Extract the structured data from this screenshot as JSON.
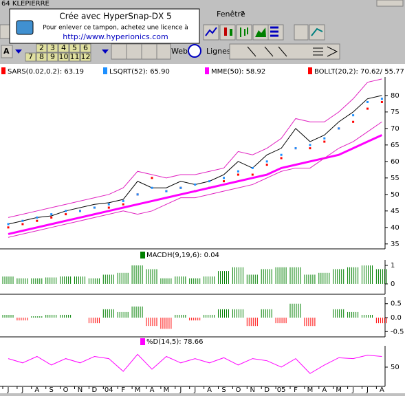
{
  "window": {
    "title": "64  KLEPIERRE"
  },
  "menu": {
    "items": [
      "Fenêtre",
      "?"
    ]
  },
  "stamp": {
    "line1": "Crée avec HyperSnap-DX 5",
    "line2": "Pour enlever ce tampon, achetez une licence à",
    "url": "http://www.hyperionics.com"
  },
  "toolbar": {
    "font_button": "A",
    "periods_top": [
      "2",
      "3",
      "4",
      "5",
      "6"
    ],
    "periods_bottom": [
      "7",
      "8",
      "9",
      "10",
      "11",
      "12"
    ],
    "web": "Web",
    "lines": "Lignes"
  },
  "chart_data": [
    {
      "type": "line",
      "categories": [
        "J",
        "J",
        "A",
        "S",
        "O",
        "N",
        "D",
        "04",
        "F",
        "M",
        "A",
        "M",
        "J",
        "J",
        "A",
        "S",
        "O",
        "N",
        "D",
        "05",
        "F",
        "M",
        "A",
        "M",
        "J",
        "J",
        "A"
      ],
      "ylim": [
        33.5,
        85.6
      ],
      "yticks": [
        35,
        40,
        45,
        50,
        55,
        60,
        65,
        70,
        75,
        80
      ],
      "series": [
        {
          "color": "#000000",
          "values": [
            41,
            42,
            43,
            43.5,
            45,
            46,
            47,
            47.5,
            48.5,
            54,
            52,
            52,
            54,
            53,
            54,
            56,
            60,
            58,
            62,
            64,
            70,
            66,
            68,
            72,
            75,
            79,
            80
          ]
        },
        {
          "name": "SARS(0.02,0.2): 63.19",
          "color": "#ff0000",
          "style": "dots",
          "values": [
            40,
            41,
            42,
            43,
            44,
            45,
            46,
            46,
            47,
            50,
            55,
            51,
            52,
            51,
            52,
            54,
            56,
            56,
            59,
            61,
            64,
            64,
            66,
            70,
            72,
            76,
            78
          ]
        },
        {
          "name": "LSQRT(52): 65.90",
          "color": "#1e90ff",
          "style": "dots",
          "values": [
            41,
            42,
            43,
            44,
            45,
            45,
            46,
            47,
            48,
            50,
            52,
            51,
            52,
            53,
            54,
            55,
            57,
            58,
            60,
            62,
            64,
            65,
            67,
            70,
            74,
            78,
            79
          ]
        },
        {
          "name": "MME(50): 58.92",
          "color": "#ff00ff",
          "style": "thick",
          "values": [
            38,
            39,
            40,
            41,
            42,
            43,
            44,
            45,
            46,
            47,
            48,
            49,
            50,
            51,
            52,
            53,
            54,
            55,
            56,
            58,
            59,
            60,
            61,
            62,
            64,
            66,
            68
          ]
        },
        {
          "name": "BOLLT(20,2): 70.62/ 55.77",
          "color": "#ff0000",
          "band_color": "#e020c0",
          "values": [
            43,
            44,
            45,
            46,
            47,
            48,
            49,
            50,
            52,
            57,
            56,
            55,
            56,
            56,
            57,
            58,
            63,
            62,
            64,
            67,
            73,
            72,
            72,
            75,
            79,
            84,
            85
          ],
          "lower": [
            37,
            38,
            39,
            40,
            41,
            42,
            43,
            44,
            45,
            44,
            45,
            47,
            49,
            49,
            50,
            51,
            52,
            53,
            55,
            57,
            58,
            58,
            61,
            64,
            66,
            69,
            72
          ]
        }
      ]
    },
    {
      "type": "bar",
      "title": "MACDH(9,19,6): 0.04",
      "title_color": "#008000",
      "ylim": [
        -0.56,
        1.3
      ],
      "yticks": [
        0,
        1
      ],
      "series": [
        {
          "color": "#008000",
          "values": [
            0.4,
            0.3,
            0.3,
            0.35,
            0.4,
            0.4,
            0.3,
            0.5,
            0.6,
            1.0,
            0.8,
            0.3,
            0.4,
            0.3,
            0.4,
            0.7,
            0.9,
            0.5,
            0.8,
            0.9,
            0.9,
            0.5,
            0.6,
            0.8,
            0.9,
            1.0,
            0.8
          ]
        }
      ]
    },
    {
      "type": "bar",
      "ylim": [
        -0.69,
        0.74
      ],
      "yticks": [
        0.5,
        {
          "value": 0,
          "label": "0.0"
        },
        -0.5
      ],
      "series": [
        {
          "color": "#008000",
          "negative_color": "#ff0000",
          "values": [
            0.1,
            -0.1,
            0.05,
            0.1,
            0.1,
            0.0,
            -0.2,
            0.3,
            0.2,
            0.4,
            -0.3,
            -0.4,
            0.1,
            -0.1,
            0.1,
            0.3,
            0.3,
            -0.3,
            0.3,
            -0.2,
            0.5,
            -0.3,
            0.0,
            0.3,
            0.2,
            0.1,
            -0.2
          ]
        }
      ]
    },
    {
      "type": "line",
      "title": "%D(14,5): 78.66",
      "title_color": "#ff00ff",
      "ylim": [
        4.8,
        100
      ],
      "yticks": [
        50
      ],
      "series": [
        {
          "color": "#ff00ff",
          "values": [
            70,
            60,
            75,
            55,
            70,
            60,
            75,
            70,
            40,
            80,
            45,
            75,
            60,
            70,
            60,
            72,
            55,
            70,
            65,
            50,
            70,
            35,
            55,
            72,
            70,
            78,
            75
          ]
        }
      ]
    }
  ]
}
